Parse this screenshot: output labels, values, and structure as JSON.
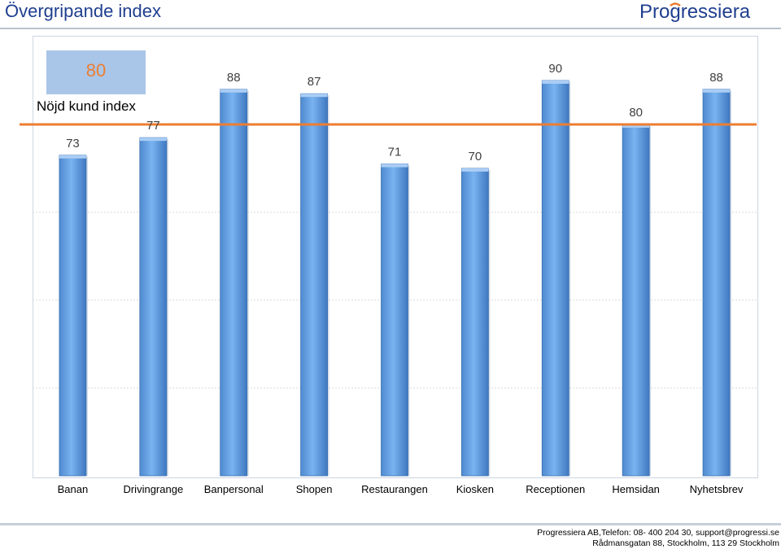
{
  "header": {
    "title": "Övergripande index"
  },
  "logo": {
    "text": "Progressiera",
    "color": "#1f3f8f",
    "accent_color": "#ed7d31"
  },
  "index_card": {
    "value": "80",
    "label": "Nöjd kund index"
  },
  "chart_data": {
    "type": "bar",
    "categories": [
      "Banan",
      "Drivingrange",
      "Banpersonal",
      "Shopen",
      "Restaurangen",
      "Kiosken",
      "Receptionen",
      "Hemsidan",
      "Nyhetsbrev"
    ],
    "values": [
      73,
      77,
      88,
      87,
      71,
      70,
      90,
      80,
      88
    ],
    "reference_line": {
      "value": 80,
      "color": "#ed7d31"
    },
    "ylim": [
      0,
      100
    ],
    "grid": true,
    "bar_color": "#5b9bd5",
    "label_color": "#404040"
  },
  "footer": {
    "line1": "Progressiera AB,Telefon: 08-  400 204 30, support@progressi.se",
    "line2": "Rådmansgatan 88, Stockholm, 113 29 Stockholm"
  }
}
